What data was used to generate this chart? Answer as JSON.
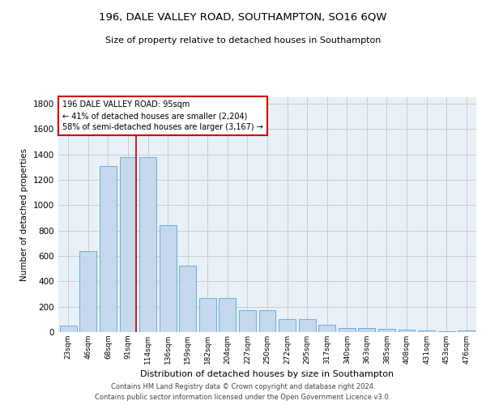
{
  "title1": "196, DALE VALLEY ROAD, SOUTHAMPTON, SO16 6QW",
  "title2": "Size of property relative to detached houses in Southampton",
  "xlabel": "Distribution of detached houses by size in Southampton",
  "ylabel": "Number of detached properties",
  "categories": [
    "23sqm",
    "46sqm",
    "68sqm",
    "91sqm",
    "114sqm",
    "136sqm",
    "159sqm",
    "182sqm",
    "204sqm",
    "227sqm",
    "250sqm",
    "272sqm",
    "295sqm",
    "317sqm",
    "340sqm",
    "363sqm",
    "385sqm",
    "408sqm",
    "431sqm",
    "453sqm",
    "476sqm"
  ],
  "values": [
    50,
    635,
    1305,
    1375,
    1375,
    840,
    525,
    270,
    270,
    175,
    175,
    100,
    100,
    60,
    35,
    35,
    28,
    18,
    15,
    8,
    15
  ],
  "bar_color": "#c5d8ee",
  "bar_edgecolor": "#6baed6",
  "grid_color": "#cccccc",
  "background_color": "#ffffff",
  "ax_facecolor": "#e8f0f8",
  "red_line_x": 3.425,
  "property_sqm": 95,
  "annotation_title": "196 DALE VALLEY ROAD: 95sqm",
  "annotation_line1": "← 41% of detached houses are smaller (2,204)",
  "annotation_line2": "58% of semi-detached houses are larger (3,167) →",
  "annotation_box_color": "#ffffff",
  "annotation_box_edgecolor": "#cc0000",
  "red_line_color": "#cc0000",
  "ylim": [
    0,
    1850
  ],
  "yticks": [
    0,
    200,
    400,
    600,
    800,
    1000,
    1200,
    1400,
    1600,
    1800
  ],
  "footer1": "Contains HM Land Registry data © Crown copyright and database right 2024.",
  "footer2": "Contains public sector information licensed under the Open Government Licence v3.0."
}
